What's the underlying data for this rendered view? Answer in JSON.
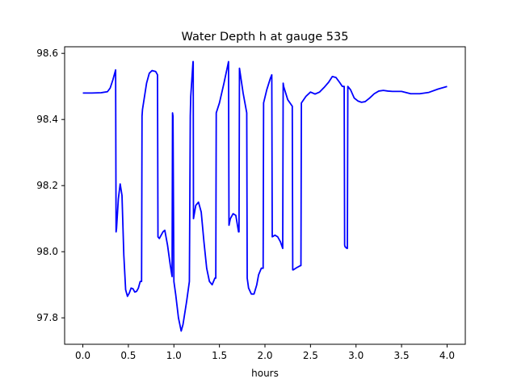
{
  "chart_data": {
    "type": "line",
    "title": "Water Depth h at gauge 535",
    "xlabel": "hours",
    "ylabel": "",
    "xlim": [
      -0.2,
      4.2
    ],
    "ylim": [
      97.72,
      98.62
    ],
    "xticks": [
      0.0,
      0.5,
      1.0,
      1.5,
      2.0,
      2.5,
      3.0,
      3.5,
      4.0
    ],
    "xtick_labels": [
      "0.0",
      "0.5",
      "1.0",
      "1.5",
      "2.0",
      "2.5",
      "3.0",
      "3.5",
      "4.0"
    ],
    "yticks": [
      97.8,
      98.0,
      98.2,
      98.4,
      98.6
    ],
    "ytick_labels": [
      "97.8",
      "98.0",
      "98.2",
      "98.4",
      "98.6"
    ],
    "grid": false,
    "series": [
      {
        "color": "#0000ff",
        "x": [
          0.0,
          0.1,
          0.2,
          0.27,
          0.3,
          0.33,
          0.36,
          0.365,
          0.37,
          0.39,
          0.41,
          0.43,
          0.45,
          0.47,
          0.49,
          0.51,
          0.53,
          0.55,
          0.57,
          0.59,
          0.61,
          0.63,
          0.645,
          0.65,
          0.655,
          0.7,
          0.73,
          0.76,
          0.8,
          0.82,
          0.825,
          0.84,
          0.86,
          0.88,
          0.9,
          0.93,
          0.96,
          0.98,
          0.985,
          0.99,
          1.0,
          1.02,
          1.05,
          1.08,
          1.1,
          1.14,
          1.17,
          1.18,
          1.185,
          1.21,
          1.212,
          1.215,
          1.24,
          1.27,
          1.3,
          1.33,
          1.36,
          1.39,
          1.42,
          1.45,
          1.46,
          1.465,
          1.5,
          1.55,
          1.6,
          1.605,
          1.62,
          1.65,
          1.68,
          1.71,
          1.715,
          1.72,
          1.76,
          1.8,
          1.805,
          1.82,
          1.85,
          1.88,
          1.91,
          1.93,
          1.96,
          1.98,
          1.985,
          2.02,
          2.06,
          2.075,
          2.08,
          2.11,
          2.14,
          2.17,
          2.195,
          2.2,
          2.205,
          2.25,
          2.3,
          2.305,
          2.31,
          2.35,
          2.39,
          2.395,
          2.4,
          2.45,
          2.5,
          2.55,
          2.6,
          2.65,
          2.7,
          2.74,
          2.78,
          2.82,
          2.85,
          2.87,
          2.875,
          2.88,
          2.9,
          2.905,
          2.91,
          2.94,
          2.98,
          3.02,
          3.06,
          3.1,
          3.15,
          3.2,
          3.25,
          3.3,
          3.35,
          3.4,
          3.5,
          3.6,
          3.7,
          3.8,
          3.9,
          4.0
        ],
        "y": [
          98.48,
          98.48,
          98.481,
          98.484,
          98.495,
          98.52,
          98.55,
          98.06,
          98.07,
          98.16,
          98.205,
          98.17,
          97.99,
          97.885,
          97.865,
          97.875,
          97.89,
          97.888,
          97.878,
          97.88,
          97.89,
          97.91,
          97.91,
          98.41,
          98.43,
          98.51,
          98.54,
          98.548,
          98.545,
          98.535,
          98.045,
          98.04,
          98.05,
          98.06,
          98.065,
          98.02,
          97.96,
          97.925,
          98.42,
          98.41,
          97.91,
          97.87,
          97.8,
          97.76,
          97.78,
          97.85,
          97.91,
          98.41,
          98.47,
          98.575,
          98.575,
          98.1,
          98.14,
          98.15,
          98.12,
          98.03,
          97.95,
          97.91,
          97.9,
          97.92,
          97.92,
          98.42,
          98.45,
          98.51,
          98.575,
          98.08,
          98.1,
          98.115,
          98.11,
          98.06,
          98.06,
          98.555,
          98.48,
          98.42,
          97.92,
          97.89,
          97.872,
          97.872,
          97.9,
          97.93,
          97.95,
          97.95,
          98.45,
          98.49,
          98.525,
          98.535,
          98.045,
          98.05,
          98.045,
          98.03,
          98.01,
          98.51,
          98.5,
          98.46,
          98.44,
          97.945,
          97.945,
          97.952,
          97.958,
          97.958,
          98.45,
          98.47,
          98.483,
          98.477,
          98.483,
          98.497,
          98.513,
          98.53,
          98.527,
          98.512,
          98.5,
          98.5,
          98.02,
          98.015,
          98.01,
          98.01,
          98.5,
          98.49,
          98.465,
          98.456,
          98.452,
          98.454,
          98.465,
          98.478,
          98.486,
          98.488,
          98.486,
          98.485,
          98.485,
          98.478,
          98.478,
          98.482,
          98.492,
          98.5
        ]
      }
    ]
  }
}
